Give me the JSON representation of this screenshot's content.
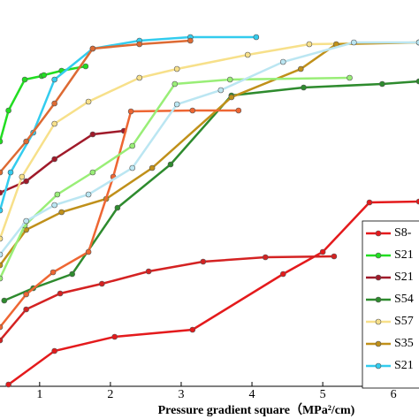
{
  "chart_data": {
    "type": "line",
    "x_label": "Pressure gradient square（MPa²/cm)",
    "xlim": [
      0.44,
      6.36
    ],
    "xticks": [
      1,
      2,
      3,
      4,
      5,
      6
    ],
    "ylim": [
      0,
      110
    ],
    "legend": "right",
    "series": [
      {
        "name": "S8-",
        "color": "#e41a1c",
        "x": [
          0.56,
          1.21,
          2.06,
          3.16,
          4.44,
          5.0,
          5.66,
          6.36
        ],
        "values": [
          5,
          14.5,
          18.5,
          20.5,
          36.25,
          42.5,
          56.5,
          56.75
        ]
      },
      {
        "name": "S21",
        "color": "#22dd22",
        "x": [
          0.44,
          0.56,
          0.79,
          1.03,
          1.06,
          1.31,
          1.65
        ],
        "values": [
          73.75,
          82.5,
          91.25,
          92.25,
          92.5,
          93.75,
          95
        ]
      },
      {
        "name": "S21",
        "color": "#a01a2a",
        "x": [
          0.44,
          0.81,
          1.21,
          1.75,
          2.19
        ],
        "values": [
          59.25,
          62.5,
          68.75,
          75.75,
          76.75
        ]
      },
      {
        "name": "S54",
        "color": "#2e8b2e",
        "x": [
          0.5,
          0.91,
          1.46,
          2.1,
          2.85,
          3.71,
          4.73,
          5.84,
          6.36
        ],
        "values": [
          28.75,
          32.25,
          36.25,
          55,
          67.25,
          86.75,
          89,
          90,
          90.75
        ]
      },
      {
        "name": "S57",
        "color": "#f7e08a",
        "x": [
          0.44,
          0.75,
          1.21,
          1.69,
          2.41,
          2.94,
          3.94,
          4.81,
          6.36
        ],
        "values": [
          46.25,
          63.75,
          78.75,
          85,
          91.75,
          94.25,
          98.25,
          101.25,
          101.75
        ]
      },
      {
        "name": "S35",
        "color": "#c0901a",
        "x": [
          0.44,
          0.81,
          1.31,
          1.94,
          2.59,
          3.71,
          4.69,
          5.19,
          6.36
        ],
        "values": [
          38.75,
          48.75,
          53.75,
          57.5,
          66.25,
          86.25,
          94.25,
          101.25,
          101.75
        ]
      },
      {
        "name": "S21",
        "color": "#33ccee",
        "x": [
          0.44,
          0.59,
          0.91,
          1.21,
          1.75,
          2.41,
          3.13,
          4.06
        ],
        "values": [
          54.25,
          65,
          76.25,
          91.25,
          100,
          102.25,
          103.25,
          103.25
        ]
      },
      {
        "color": "#ee6633",
        "x": [
          0.44,
          0.81,
          1.19,
          1.69,
          2.04,
          2.29,
          3.16,
          3.81
        ],
        "values": [
          21.25,
          30.5,
          36.75,
          42.5,
          63.75,
          82.25,
          82.5,
          82.5
        ]
      },
      {
        "color": "#dd6a33",
        "x": [
          0.44,
          0.81,
          1.21,
          1.75,
          2.41,
          3.13
        ],
        "values": [
          65,
          73.75,
          84.5,
          100,
          101.25,
          102.25
        ]
      },
      {
        "color": "#99ee77",
        "x": [
          0.44,
          0.79,
          1.25,
          1.75,
          2.31,
          2.91,
          3.69,
          5.38
        ],
        "values": [
          35,
          50,
          58.75,
          65,
          72.5,
          90,
          91.25,
          91.75
        ]
      },
      {
        "color": "#bbe6f2",
        "x": [
          0.44,
          0.81,
          1.21,
          1.69,
          2.31,
          2.94,
          3.56,
          4.44,
          5.44,
          6.36
        ],
        "values": [
          41.75,
          51.25,
          55.75,
          58.75,
          66.25,
          84.25,
          88.25,
          96.25,
          101.75,
          101.75
        ]
      },
      {
        "color": "#d42222",
        "x": [
          0.44,
          0.81,
          1.29,
          1.88,
          2.54,
          3.31,
          4.19,
          5.16
        ],
        "values": [
          17.5,
          26.25,
          30.75,
          33.5,
          37,
          39.75,
          41,
          41.25
        ]
      }
    ]
  }
}
